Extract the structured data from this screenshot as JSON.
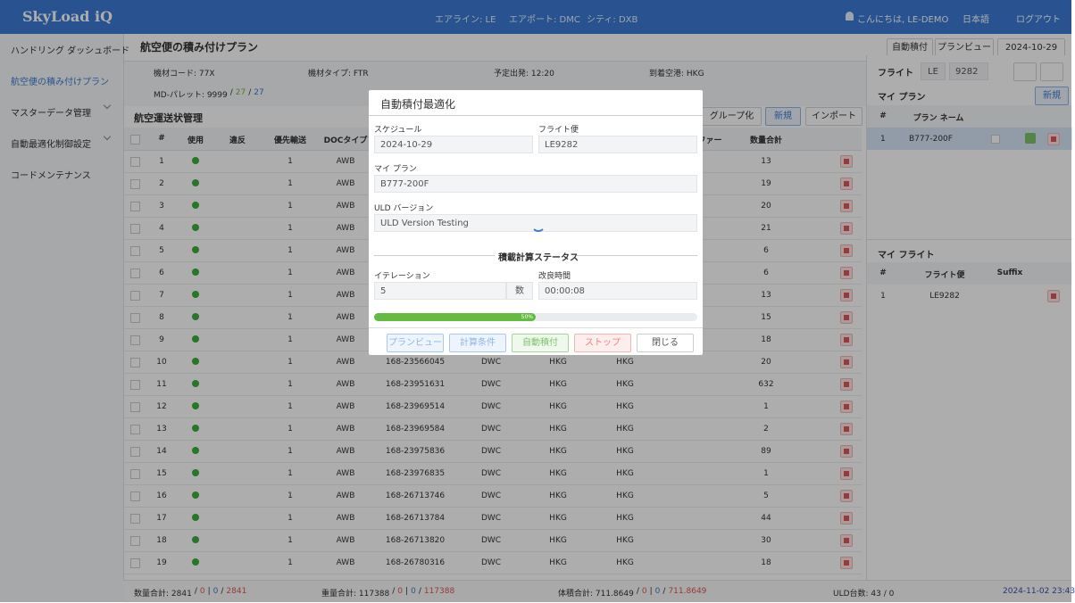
{
  "header": {
    "logo": "SkyLoad iQ",
    "airline": "エアライン: LE",
    "airport": "エアポート: DMC",
    "city": "シティ: DXB",
    "greeting": "こんにちは, LE-DEMO",
    "language": "日本語",
    "logout": "ログアウト"
  },
  "sidebar": {
    "items": [
      "ハンドリング ダッシュボード",
      "航空便の積み付けプラン",
      "マスターデータ管理",
      "自動最適化制御設定",
      "コードメンテナンス"
    ]
  },
  "page": {
    "title": "航空便の積み付けプラン",
    "buttons": [
      "自動積付",
      "プランビュー"
    ],
    "date": "2024-10-29"
  },
  "flight_info": {
    "fields": [
      "機材コード: 77X",
      "機材タイプ: FTR",
      "予定出発: 12:20",
      "到着空港: HKG"
    ],
    "md_pallet": [
      "MD-パレット: 9999",
      "/",
      "27",
      "/",
      "27"
    ]
  },
  "awb": {
    "title": "航空運送状管理",
    "buttons": [
      "グループ化",
      "新規",
      "インポート"
    ],
    "columns": [
      "#",
      "使用",
      "違反",
      "優先輸送",
      "DOCタイプ",
      null,
      null,
      null,
      null,
      "ファー",
      "数量合計"
    ],
    "rows": [
      [
        1,
        1,
        "AWB",
        null,
        null,
        null,
        null,
        13
      ],
      [
        2,
        1,
        "AWB",
        null,
        null,
        null,
        null,
        19
      ],
      [
        3,
        1,
        "AWB",
        null,
        null,
        null,
        null,
        20
      ],
      [
        4,
        1,
        "AWB",
        null,
        null,
        null,
        null,
        21
      ],
      [
        5,
        1,
        "AWB",
        null,
        null,
        null,
        null,
        6
      ],
      [
        6,
        1,
        "AWB",
        null,
        null,
        null,
        null,
        6
      ],
      [
        7,
        1,
        "AWB",
        null,
        null,
        null,
        null,
        13
      ],
      [
        8,
        1,
        "AWB",
        null,
        null,
        null,
        null,
        15
      ],
      [
        9,
        1,
        "AWB",
        null,
        null,
        null,
        null,
        18
      ],
      [
        10,
        1,
        "AWB",
        "168-23566045",
        "DWC",
        "HKG",
        "HKG",
        20
      ],
      [
        11,
        1,
        "AWB",
        "168-23951631",
        "DWC",
        "HKG",
        "HKG",
        632
      ],
      [
        12,
        1,
        "AWB",
        "168-23969514",
        "DWC",
        "HKG",
        "HKG",
        1
      ],
      [
        13,
        1,
        "AWB",
        "168-23969584",
        "DWC",
        "HKG",
        "HKG",
        2
      ],
      [
        14,
        1,
        "AWB",
        "168-23975836",
        "DWC",
        "HKG",
        "HKG",
        89
      ],
      [
        15,
        1,
        "AWB",
        "168-23976835",
        "DWC",
        "HKG",
        "HKG",
        1
      ],
      [
        16,
        1,
        "AWB",
        "168-26713746",
        "DWC",
        "HKG",
        "HKG",
        5
      ],
      [
        17,
        1,
        "AWB",
        "168-26713784",
        "DWC",
        "HKG",
        "HKG",
        44
      ],
      [
        18,
        1,
        "AWB",
        "168-26713820",
        "DWC",
        "HKG",
        "HKG",
        30
      ],
      [
        19,
        1,
        "AWB",
        "168-26780316",
        "DWC",
        "HKG",
        "HKG",
        18
      ]
    ]
  },
  "right_panel": {
    "flight_label": "フライト",
    "airline": "LE",
    "flight_no": "9282",
    "my_plan": {
      "title": "マイ プラン",
      "new_button": "新規",
      "columns": [
        "#",
        "プラン ネーム"
      ],
      "rows": [
        [
          1,
          "B777-200F"
        ]
      ]
    },
    "my_flight": {
      "title": "マイ フライト",
      "columns": [
        "#",
        "フライト便",
        "Suffix"
      ],
      "rows": [
        [
          1,
          "LE9282"
        ]
      ]
    }
  },
  "footer": {
    "totals": [
      [
        "数量合計: 2841",
        "/",
        "0",
        "|",
        "0",
        "/",
        "2841"
      ],
      [
        "重量合計: 117388",
        "/",
        "0",
        "|",
        "0",
        "/",
        "117388"
      ],
      [
        "体積合計: 711.8649",
        "/",
        "0",
        "|",
        "0",
        "/",
        "711.8649"
      ]
    ],
    "uld": "ULD台数: 43 / 0",
    "timestamp": "2024-11-02 23:43"
  },
  "modal": {
    "title": "自動積付最適化",
    "schedule_label": "スケジュール",
    "schedule": "2024-10-29",
    "flight_label": "フライト便",
    "flight": "LE9282",
    "plan_label": "マイ プラン",
    "plan": "B777-200F",
    "uld_label": "ULD バージョン",
    "uld": "ULD Version Testing",
    "status_title": "積載計算ステータス",
    "iteration_label": "イテレーション",
    "iteration": 5,
    "iteration_unit": "数",
    "time_label": "改良時間",
    "time": "00:00:08",
    "progress": {
      "value": 50,
      "label": "50%"
    },
    "buttons": [
      "プランビュー",
      "計算条件",
      "自動積付",
      "ストップ",
      "閉じる"
    ]
  }
}
